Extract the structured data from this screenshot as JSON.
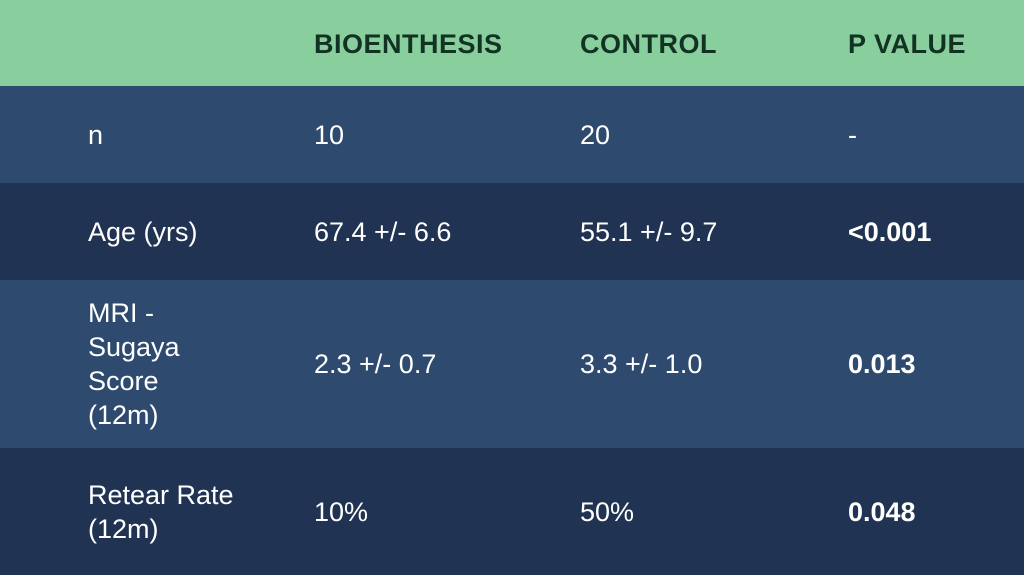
{
  "table": {
    "headers": [
      "",
      "BIOENTHESIS",
      "CONTROL",
      "P VALUE"
    ],
    "rows": [
      {
        "label": "n",
        "bioenthesis": "10",
        "control": "20",
        "p_value": "-"
      },
      {
        "label": "Age (yrs)",
        "bioenthesis": "67.4 +/- 6.6",
        "control": "55.1 +/- 9.7",
        "p_value": "<0.001"
      },
      {
        "label": "MRI - Sugaya Score (12m)",
        "bioenthesis": "2.3 +/- 0.7",
        "control": "3.3 +/- 1.0",
        "p_value": "0.013"
      },
      {
        "label": "Retear Rate (12m)",
        "bioenthesis": "10%",
        "control": "50%",
        "p_value": "0.048"
      }
    ]
  },
  "colors": {
    "header_bg": "#88cf9d",
    "header_text": "#123223",
    "row_light": "#2e4a6f",
    "row_dark": "#203352",
    "row_text": "#ffffff"
  }
}
